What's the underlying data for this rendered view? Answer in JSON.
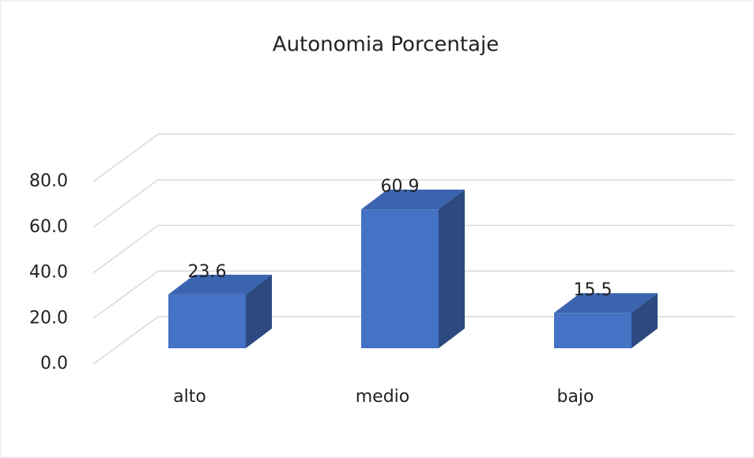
{
  "chart_data": {
    "type": "bar3d",
    "title": "Autonomia Porcentaje",
    "categories": [
      "alto",
      "medio",
      "bajo"
    ],
    "values": [
      23.6,
      60.9,
      15.5
    ],
    "color": "#4472c4",
    "ylim": [
      0,
      80
    ],
    "yticks": [
      {
        "value": 0,
        "label": "0.0"
      },
      {
        "value": 20,
        "label": "20.0"
      },
      {
        "value": 40,
        "label": "40.0"
      },
      {
        "value": 60,
        "label": "60.0"
      },
      {
        "value": 80,
        "label": "80.0"
      }
    ],
    "grid": true
  }
}
